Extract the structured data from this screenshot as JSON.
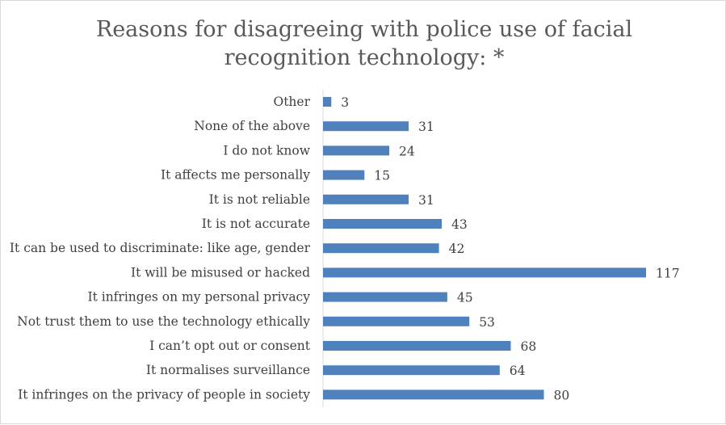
{
  "chart_data": {
    "type": "bar",
    "orientation": "horizontal",
    "title_lines": [
      "Reasons for disagreeing with police use of facial",
      "recognition technology: *"
    ],
    "categories": [
      "Other",
      "None of the above",
      "I do not know",
      "It affects me personally",
      "It is not reliable",
      "It is not accurate",
      "It can be used to discriminate: like age, gender",
      "It will be misused or hacked",
      "It infringes on my personal privacy",
      "Not trust them to use the technology ethically",
      "I can’t opt out or consent",
      "It normalises surveillance",
      "It infringes on the privacy of people in society"
    ],
    "values": [
      3,
      31,
      24,
      15,
      31,
      43,
      42,
      117,
      45,
      53,
      68,
      64,
      80
    ],
    "xlim": [
      0,
      117
    ],
    "grid": false,
    "legend": "none",
    "bar_color": "#4f81bd",
    "axis_color": "#d9d9d9",
    "text_color": "#404040",
    "title_color": "#595959"
  }
}
